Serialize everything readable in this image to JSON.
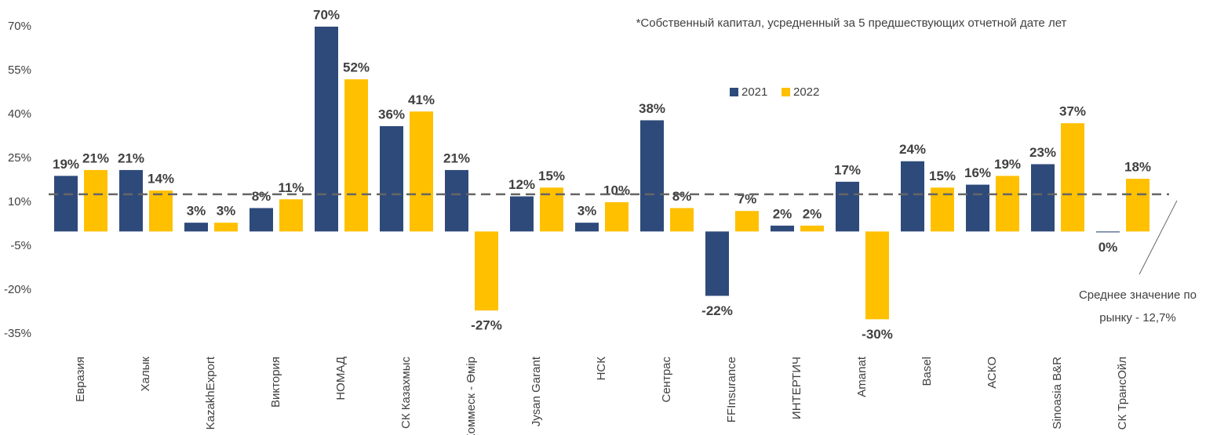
{
  "chart_data": {
    "type": "bar",
    "note": "*Собственный капитал, усредненный за 5 предшествующих отчетной дате лет",
    "categories": [
      "Евразия",
      "Халык",
      "KazakhExport",
      "Виктория",
      "НОМАД",
      "СК Казахмыс",
      "Коммеск - Өмір",
      "Jysan Garant",
      "НСК",
      "Сентрас",
      "FFInsurance",
      "ИНТЕРТИЧ",
      "Amanat",
      "Basel",
      "АСКО",
      "Sinoasia B&R",
      "СК ТрансОйл"
    ],
    "series": [
      {
        "name": "2021",
        "color": "#2e4a7a",
        "values": [
          19,
          21,
          3,
          8,
          70,
          36,
          21,
          12,
          3,
          38,
          -22,
          2,
          17,
          24,
          16,
          23,
          -0.3
        ],
        "value_labels": [
          "19%",
          "21%",
          "3%",
          "8%",
          "70%",
          "36%",
          "21%",
          "12%",
          "3%",
          "38%",
          "-22%",
          "2%",
          "17%",
          "24%",
          "16%",
          "23%",
          "0%"
        ]
      },
      {
        "name": "2022",
        "color": "#ffc000",
        "values": [
          21,
          14,
          3,
          11,
          52,
          41,
          -27,
          15,
          10,
          8,
          7,
          2,
          -30,
          15,
          19,
          37,
          18
        ],
        "value_labels": [
          "21%",
          "14%",
          "3%",
          "11%",
          "52%",
          "41%",
          "-27%",
          "15%",
          "10%",
          "8%",
          "7%",
          "2%",
          "-30%",
          "15%",
          "19%",
          "37%",
          "18%"
        ]
      }
    ],
    "average": {
      "value": 12.7,
      "label": "Среднее значение по рынку - 12,7%"
    },
    "ylim": [
      -35,
      70
    ],
    "yticks": [
      {
        "value": 70,
        "label": "70%"
      },
      {
        "value": 55,
        "label": "55%"
      },
      {
        "value": 40,
        "label": "40%"
      },
      {
        "value": 25,
        "label": "25%"
      },
      {
        "value": 10,
        "label": "10%"
      },
      {
        "value": -5,
        "label": "-5%"
      },
      {
        "value": -20,
        "label": "-20%"
      },
      {
        "value": -35,
        "label": "-35%"
      }
    ],
    "grid": false,
    "legend": "top"
  }
}
